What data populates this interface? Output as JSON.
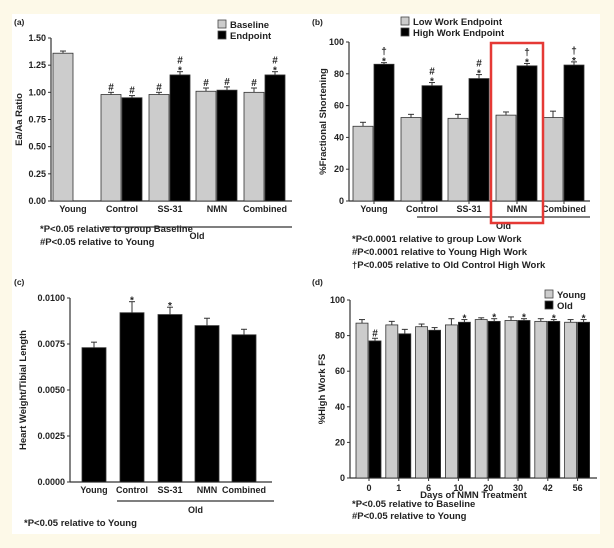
{
  "colors": {
    "light": "#cccccc",
    "dark": "#000000",
    "highlight": "#e53935",
    "axis": "#333333"
  },
  "chart_data": [
    {
      "panel": "(a)",
      "type": "bar",
      "ylabel": "Ea/Aa Ratio",
      "ylim": [
        0,
        1.5
      ],
      "yticks": [
        "0.00",
        "0.25",
        "0.50",
        "0.75",
        "1.00",
        "1.25",
        "1.50"
      ],
      "ytick_values": [
        0,
        0.25,
        0.5,
        0.75,
        1.0,
        1.25,
        1.5
      ],
      "categories": [
        "Young",
        "Control",
        "SS-31",
        "NMN",
        "Combined"
      ],
      "group_label": "Old",
      "series": [
        {
          "name": "Baseline",
          "values": [
            1.36,
            0.98,
            0.98,
            1.01,
            1.0
          ],
          "errors": [
            0.02,
            0.02,
            0.02,
            0.03,
            0.04
          ],
          "marks": [
            "",
            "#",
            "#",
            "#",
            "#"
          ]
        },
        {
          "name": "Endpoint",
          "values": [
            null,
            0.95,
            1.16,
            1.02,
            1.16
          ],
          "errors": [
            null,
            0.02,
            0.03,
            0.03,
            0.03
          ],
          "marks": [
            "",
            "#",
            "#*",
            "#",
            "#*"
          ]
        }
      ],
      "notes": [
        "*P<0.05 relative to group Baseline",
        "#P<0.05 relative to Young"
      ]
    },
    {
      "panel": "(b)",
      "type": "bar",
      "ylabel": "%Fractional Shortening",
      "ylim": [
        0,
        100
      ],
      "yticks": [
        "0",
        "20",
        "40",
        "60",
        "80",
        "100"
      ],
      "ytick_values": [
        0,
        20,
        40,
        60,
        80,
        100
      ],
      "categories": [
        "Young",
        "Control",
        "SS-31",
        "NMN",
        "Combined"
      ],
      "group_label": "Old",
      "highlighted_category": "NMN",
      "series": [
        {
          "name": "Low Work Endpoint",
          "values": [
            47,
            52.5,
            52,
            54,
            52.5
          ],
          "errors": [
            2.5,
            2,
            2.5,
            2,
            4
          ],
          "marks": [
            "",
            "",
            "",
            "",
            ""
          ]
        },
        {
          "name": "High Work Endpoint",
          "values": [
            86,
            72.5,
            77,
            85,
            85.5
          ],
          "errors": [
            1,
            2,
            2.5,
            1.5,
            2
          ],
          "marks": [
            "†*",
            "#*",
            "#*",
            "†*",
            "†*"
          ]
        }
      ],
      "notes": [
        "*P<0.0001 relative to group Low Work",
        "#P<0.0001 relative to Young High Work",
        "†P<0.005 relative to Old Control High Work"
      ]
    },
    {
      "panel": "(c)",
      "type": "bar",
      "ylabel": "Heart Weight/Tibial Length",
      "ylim": [
        0,
        0.01
      ],
      "yticks": [
        "0.0000",
        "0.0025",
        "0.0050",
        "0.0075",
        "0.0100"
      ],
      "ytick_values": [
        0,
        0.0025,
        0.005,
        0.0075,
        0.01
      ],
      "categories": [
        "Young",
        "Control",
        "SS-31",
        "NMN",
        "Combined"
      ],
      "group_label": "Old",
      "series": [
        {
          "name": "Heart Weight/Tibial Length",
          "values": [
            0.0073,
            0.0092,
            0.0091,
            0.0085,
            0.008
          ],
          "errors": [
            0.0003,
            0.0006,
            0.0004,
            0.0004,
            0.0003
          ],
          "marks": [
            "",
            "*",
            "*",
            "",
            ""
          ]
        }
      ],
      "notes": [
        "*P<0.05 relative to Young"
      ]
    },
    {
      "panel": "(d)",
      "type": "bar",
      "ylabel": "%High Work FS",
      "xlabel": "Days of NMN Treatment",
      "ylim": [
        0,
        100
      ],
      "yticks": [
        "0",
        "20",
        "40",
        "60",
        "80",
        "100"
      ],
      "ytick_values": [
        0,
        20,
        40,
        60,
        80,
        100
      ],
      "categories": [
        "0",
        "1",
        "6",
        "10",
        "20",
        "30",
        "42",
        "56"
      ],
      "series": [
        {
          "name": "Young",
          "values": [
            87,
            86,
            85,
            86,
            89,
            88.5,
            88,
            87.5
          ],
          "errors": [
            2,
            2,
            1.5,
            3.5,
            1,
            2,
            1.5,
            1.5
          ],
          "marks": [
            "",
            "",
            "",
            "",
            "",
            "",
            "",
            ""
          ]
        },
        {
          "name": "Old",
          "values": [
            77,
            81,
            83,
            87.5,
            88,
            88.5,
            88,
            87.5
          ],
          "errors": [
            1.5,
            2.5,
            1.5,
            1.5,
            1.5,
            1,
            1,
            1.5
          ],
          "marks": [
            "#",
            "",
            "",
            "*",
            "*",
            "*",
            "*",
            "*"
          ]
        }
      ],
      "notes": [
        "*P<0.05 relative to Baseline",
        "#P<0.05 relative to Young"
      ]
    }
  ]
}
